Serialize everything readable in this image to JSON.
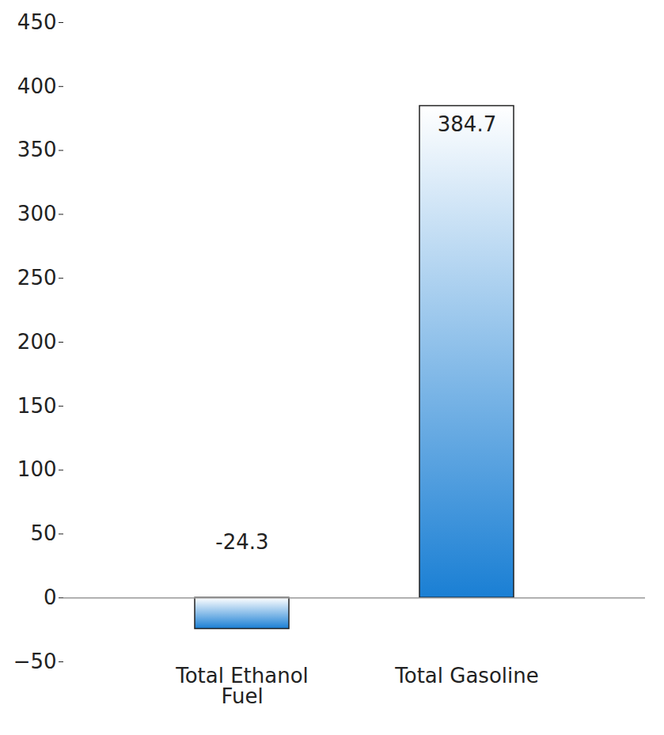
{
  "chart_data": {
    "type": "bar",
    "categories": [
      "Total Ethanol Fuel",
      "Total Gasoline"
    ],
    "values": [
      -24.3,
      384.7
    ],
    "color": "#1a7fd4",
    "ylim": [
      -50,
      450
    ],
    "yticks": [
      -50,
      0,
      50,
      100,
      150,
      200,
      250,
      300,
      350,
      400,
      450
    ],
    "grid": false,
    "data_labels": true
  }
}
